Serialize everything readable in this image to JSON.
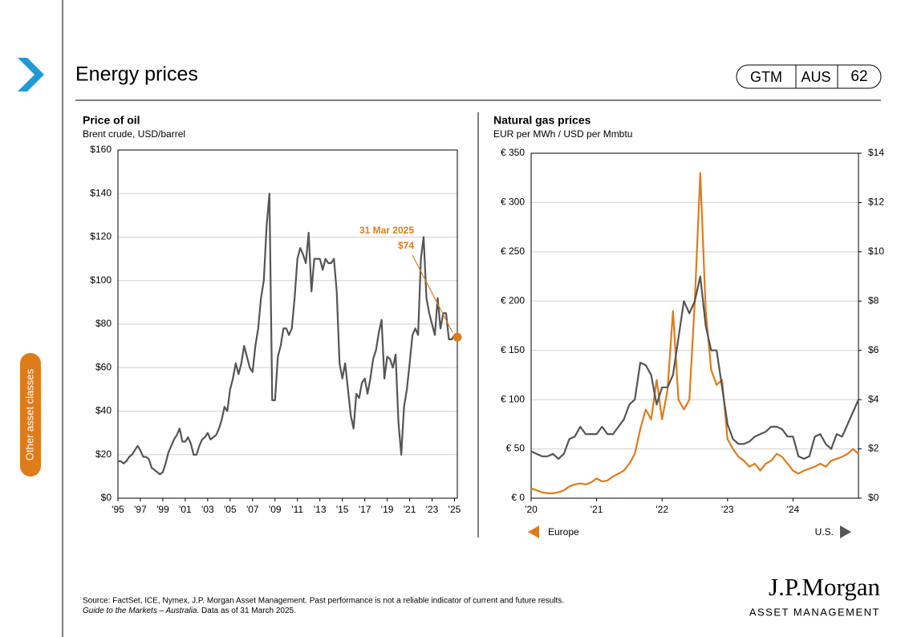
{
  "page": {
    "title": "Energy prices",
    "badge": [
      "GTM",
      "AUS",
      "62"
    ],
    "sidebar": "Other asset classes",
    "source": "Source: FactSet, ICE,  Nymex, J.P. Morgan  Asset Management. Past performance is not a reliable indicator of current and future results.",
    "guide": "Guide to the Markets – Australia",
    "data_note": ". Data as of 31 March 2025.",
    "logo": "J.P.Morgan",
    "logo_sub": "ASSET MANAGEMENT"
  },
  "chart_data": [
    {
      "type": "line",
      "title": "Price of oil",
      "subtitle": "Brent crude, USD/barrel",
      "xlim": [
        1995,
        2025.25
      ],
      "xticks": [
        {
          "value": 1995,
          "label": "'95"
        },
        {
          "value": 1997,
          "label": "'97"
        },
        {
          "value": 1999,
          "label": "'99"
        },
        {
          "value": 2001,
          "label": "'01"
        },
        {
          "value": 2003,
          "label": "'03"
        },
        {
          "value": 2005,
          "label": "'05"
        },
        {
          "value": 2007,
          "label": "'07"
        },
        {
          "value": 2009,
          "label": "'09"
        },
        {
          "value": 2011,
          "label": "'11"
        },
        {
          "value": 2013,
          "label": "'13"
        },
        {
          "value": 2015,
          "label": "'15"
        },
        {
          "value": 2017,
          "label": "'17"
        },
        {
          "value": 2019,
          "label": "'19"
        },
        {
          "value": 2021,
          "label": "'21"
        },
        {
          "value": 2023,
          "label": "'23"
        },
        {
          "value": 2025,
          "label": "'25"
        }
      ],
      "ylim": [
        0,
        160
      ],
      "yticks": [
        {
          "value": 0,
          "label": "$0"
        },
        {
          "value": 20,
          "label": "$20"
        },
        {
          "value": 40,
          "label": "$40"
        },
        {
          "value": 60,
          "label": "$60"
        },
        {
          "value": 80,
          "label": "$80"
        },
        {
          "value": 100,
          "label": "$100"
        },
        {
          "value": 120,
          "label": "$120"
        },
        {
          "value": 140,
          "label": "$140"
        },
        {
          "value": 160,
          "label": "$160"
        }
      ],
      "grid": true,
      "x": [
        1995,
        1995.25,
        1995.5,
        1995.75,
        1996,
        1996.25,
        1996.5,
        1996.75,
        1997,
        1997.25,
        1997.5,
        1997.75,
        1998,
        1998.25,
        1998.5,
        1998.75,
        1999,
        1999.25,
        1999.5,
        1999.75,
        2000,
        2000.25,
        2000.5,
        2000.75,
        2001,
        2001.25,
        2001.5,
        2001.75,
        2002,
        2002.25,
        2002.5,
        2002.75,
        2003,
        2003.25,
        2003.5,
        2003.75,
        2004,
        2004.25,
        2004.5,
        2004.75,
        2005,
        2005.25,
        2005.5,
        2005.75,
        2006,
        2006.25,
        2006.5,
        2006.75,
        2007,
        2007.25,
        2007.5,
        2007.75,
        2008,
        2008.25,
        2008.5,
        2008.75,
        2009,
        2009.25,
        2009.5,
        2009.75,
        2010,
        2010.25,
        2010.5,
        2010.75,
        2011,
        2011.25,
        2011.5,
        2011.75,
        2012,
        2012.25,
        2012.5,
        2012.75,
        2013,
        2013.25,
        2013.5,
        2013.75,
        2014,
        2014.25,
        2014.5,
        2014.75,
        2015,
        2015.25,
        2015.5,
        2015.75,
        2016,
        2016.25,
        2016.5,
        2016.75,
        2017,
        2017.25,
        2017.5,
        2017.75,
        2018,
        2018.25,
        2018.5,
        2018.75,
        2019,
        2019.25,
        2019.5,
        2019.75,
        2020,
        2020.25,
        2020.5,
        2020.75,
        2021,
        2021.25,
        2021.5,
        2021.75,
        2022,
        2022.25,
        2022.5,
        2022.75,
        2023,
        2023.25,
        2023.5,
        2023.75,
        2024,
        2024.25,
        2024.5,
        2024.75,
        2025,
        2025.25
      ],
      "series": [
        {
          "color": "#555555",
          "values": [
            17,
            17,
            16,
            17,
            19,
            20,
            22,
            24,
            22,
            19,
            19,
            18,
            14,
            13,
            12,
            11,
            12,
            16,
            21,
            24,
            27,
            29,
            32,
            26,
            26,
            28,
            25,
            20,
            20,
            24,
            27,
            28,
            30,
            27,
            28,
            29,
            32,
            36,
            42,
            40,
            50,
            55,
            62,
            57,
            62,
            70,
            65,
            60,
            58,
            70,
            78,
            92,
            100,
            125,
            140,
            45,
            45,
            65,
            70,
            78,
            78,
            75,
            78,
            92,
            110,
            115,
            112,
            108,
            122,
            95,
            110,
            110,
            110,
            105,
            110,
            108,
            108,
            110,
            95,
            62,
            55,
            62,
            50,
            38,
            32,
            48,
            46,
            53,
            55,
            48,
            55,
            64,
            68,
            76,
            82,
            55,
            65,
            64,
            60,
            66,
            35,
            20,
            42,
            50,
            62,
            75,
            78,
            75,
            110,
            120,
            92,
            85,
            80,
            75,
            92,
            78,
            85,
            85,
            73,
            73,
            75,
            74
          ]
        }
      ],
      "annotation": {
        "label": "31 Mar 2025",
        "x": 2025.25,
        "value": 74,
        "value_label": "$74",
        "color": "#e07b1a"
      }
    },
    {
      "type": "line",
      "title": "Natural gas prices",
      "subtitle": "EUR per MWh / USD per Mmbtu",
      "xlim": [
        2020,
        2025
      ],
      "xticks": [
        {
          "value": 2020,
          "label": "'20"
        },
        {
          "value": 2021,
          "label": "'21"
        },
        {
          "value": 2022,
          "label": "'22"
        },
        {
          "value": 2023,
          "label": "'23"
        },
        {
          "value": 2024,
          "label": "'24"
        }
      ],
      "ylim": [
        0,
        350
      ],
      "yticks": [
        {
          "value": 0,
          "label": "€ 0"
        },
        {
          "value": 50,
          "label": "€ 50"
        },
        {
          "value": 100,
          "label": "€ 100"
        },
        {
          "value": 150,
          "label": "€ 150"
        },
        {
          "value": 200,
          "label": "€ 200"
        },
        {
          "value": 250,
          "label": "€ 250"
        },
        {
          "value": 300,
          "label": "€ 300"
        },
        {
          "value": 350,
          "label": "€ 350"
        }
      ],
      "y2lim": [
        0,
        14
      ],
      "y2ticks": [
        {
          "value": 0,
          "label": "$0"
        },
        {
          "value": 2,
          "label": "$2"
        },
        {
          "value": 4,
          "label": "$4"
        },
        {
          "value": 6,
          "label": "$6"
        },
        {
          "value": 8,
          "label": "$8"
        },
        {
          "value": 10,
          "label": "$10"
        },
        {
          "value": 12,
          "label": "$12"
        },
        {
          "value": 14,
          "label": "$14"
        }
      ],
      "grid": true,
      "x": [
        2020,
        2020.083,
        2020.167,
        2020.25,
        2020.333,
        2020.417,
        2020.5,
        2020.583,
        2020.667,
        2020.75,
        2020.833,
        2020.917,
        2021,
        2021.083,
        2021.167,
        2021.25,
        2021.333,
        2021.417,
        2021.5,
        2021.583,
        2021.667,
        2021.75,
        2021.833,
        2021.917,
        2022,
        2022.083,
        2022.167,
        2022.25,
        2022.333,
        2022.417,
        2022.5,
        2022.583,
        2022.667,
        2022.75,
        2022.833,
        2022.917,
        2023,
        2023.083,
        2023.167,
        2023.25,
        2023.333,
        2023.417,
        2023.5,
        2023.583,
        2023.667,
        2023.75,
        2023.833,
        2023.917,
        2024,
        2024.083,
        2024.167,
        2024.25,
        2024.333,
        2024.417,
        2024.5,
        2024.583,
        2024.667,
        2024.75,
        2024.833,
        2024.917,
        2025
      ],
      "series": [
        {
          "name": "Europe",
          "color": "#e07b1a",
          "axis": "y",
          "values": [
            10,
            8,
            6,
            5,
            5,
            6,
            8,
            12,
            14,
            15,
            14,
            16,
            20,
            17,
            18,
            22,
            25,
            28,
            35,
            45,
            70,
            90,
            80,
            120,
            80,
            110,
            190,
            100,
            90,
            100,
            200,
            330,
            190,
            130,
            115,
            120,
            60,
            50,
            42,
            38,
            32,
            35,
            28,
            35,
            38,
            45,
            42,
            35,
            28,
            25,
            28,
            30,
            32,
            35,
            32,
            38,
            40,
            42,
            45,
            50,
            45
          ]
        },
        {
          "name": "U.S.",
          "color": "#555555",
          "axis": "y2",
          "values": [
            1.9,
            1.8,
            1.7,
            1.7,
            1.8,
            1.6,
            1.8,
            2.4,
            2.5,
            2.9,
            2.6,
            2.6,
            2.6,
            2.9,
            2.6,
            2.6,
            2.9,
            3.2,
            3.8,
            4.0,
            5.5,
            5.4,
            5.0,
            3.8,
            4.5,
            4.5,
            5.0,
            6.5,
            8.0,
            7.5,
            8.0,
            9.0,
            7.0,
            6.0,
            6.0,
            4.5,
            3.0,
            2.4,
            2.2,
            2.2,
            2.3,
            2.5,
            2.6,
            2.7,
            2.9,
            2.9,
            2.8,
            2.5,
            2.5,
            1.7,
            1.6,
            1.7,
            2.5,
            2.6,
            2.2,
            2.0,
            2.6,
            2.5,
            3.0,
            3.5,
            4.0
          ]
        }
      ]
    }
  ]
}
